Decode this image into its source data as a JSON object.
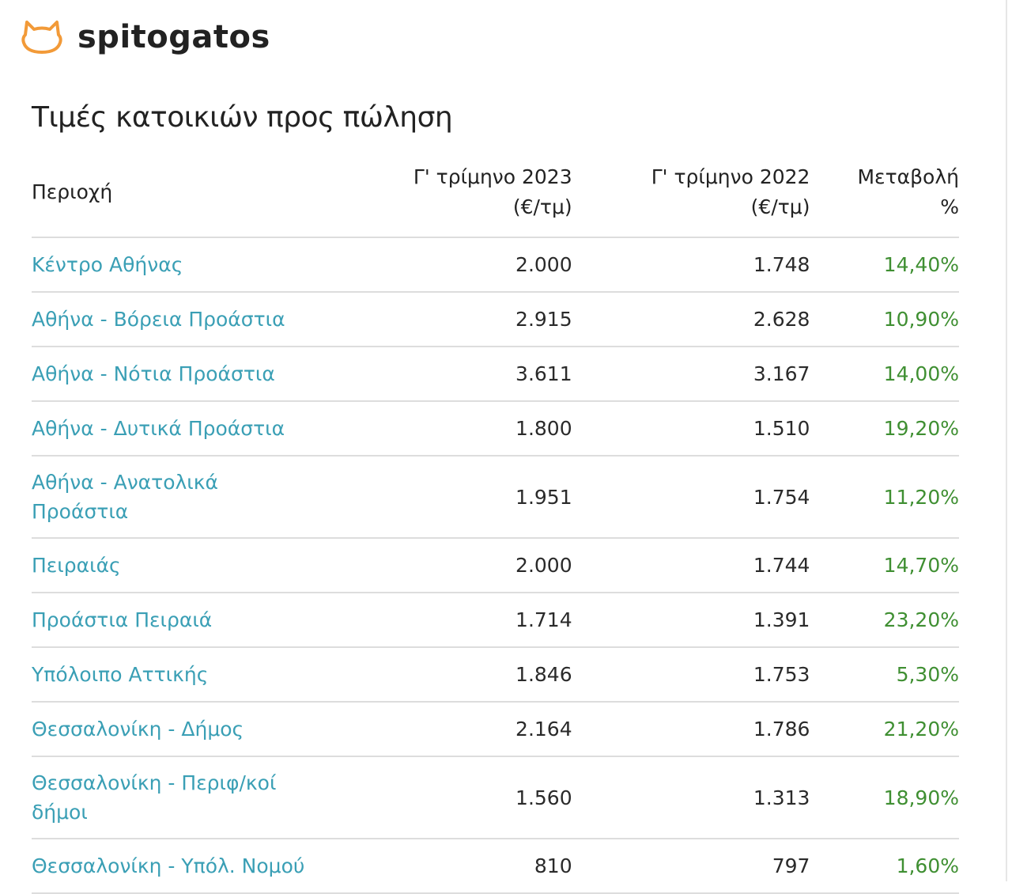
{
  "brand": {
    "name": "spitogatos",
    "logo_color": "#f29a38"
  },
  "title": "Τιμές κατοικιών προς πώληση",
  "colors": {
    "link": "#3a9fb5",
    "positive": "#3f8f32"
  },
  "table": {
    "headers": [
      "Περιοχή",
      "Γ' τρίμηνο 2023 (€/τμ)",
      "Γ' τρίμηνο 2022 (€/τμ)",
      "Μεταβολή %"
    ],
    "rows": [
      {
        "region": "Κέντρο Αθήνας",
        "q3_2023": "2.000",
        "q3_2022": "1.748",
        "change": "14,40%"
      },
      {
        "region": "Αθήνα - Βόρεια Προάστια",
        "q3_2023": "2.915",
        "q3_2022": "2.628",
        "change": "10,90%"
      },
      {
        "region": "Αθήνα - Νότια Προάστια",
        "q3_2023": "3.611",
        "q3_2022": "3.167",
        "change": "14,00%"
      },
      {
        "region": "Αθήνα - Δυτικά Προάστια",
        "q3_2023": "1.800",
        "q3_2022": "1.510",
        "change": "19,20%"
      },
      {
        "region": "Αθήνα - Ανατολικά Προάστια",
        "q3_2023": "1.951",
        "q3_2022": "1.754",
        "change": "11,20%"
      },
      {
        "region": "Πειραιάς",
        "q3_2023": "2.000",
        "q3_2022": "1.744",
        "change": "14,70%"
      },
      {
        "region": "Προάστια Πειραιά",
        "q3_2023": "1.714",
        "q3_2022": "1.391",
        "change": "23,20%"
      },
      {
        "region": "Υπόλοιπο Αττικής",
        "q3_2023": "1.846",
        "q3_2022": "1.753",
        "change": "5,30%"
      },
      {
        "region": "Θεσσαλονίκη - Δήμος",
        "q3_2023": "2.164",
        "q3_2022": "1.786",
        "change": "21,20%"
      },
      {
        "region": "Θεσσαλονίκη - Περιφ/κοί δήμοι",
        "q3_2023": "1.560",
        "q3_2022": "1.313",
        "change": "18,90%"
      },
      {
        "region": "Θεσσαλονίκη - Υπόλ. Νομού",
        "q3_2023": "810",
        "q3_2022": "797",
        "change": "1,60%"
      }
    ]
  }
}
